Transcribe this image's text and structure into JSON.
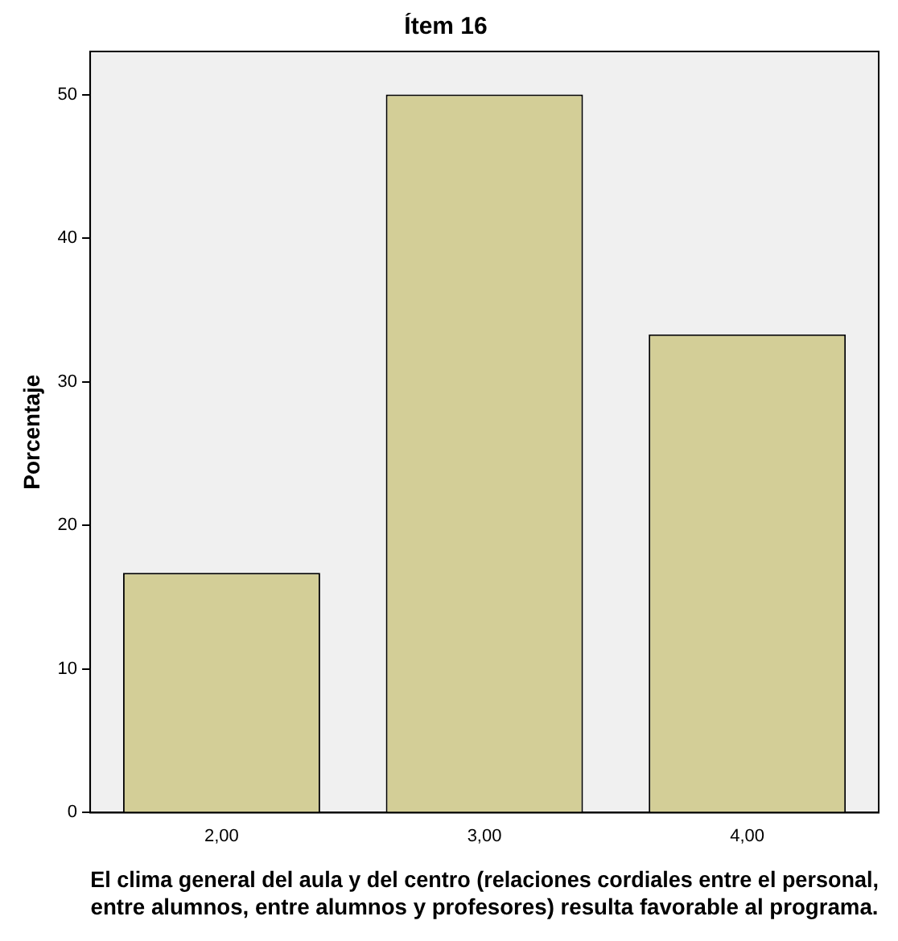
{
  "chart_data": {
    "type": "bar",
    "title": "Ítem 16",
    "xlabel": "El clima general del aula y del centro (relaciones cordiales entre el personal, entre alumnos, entre alumnos y profesores) resulta favorable al programa.",
    "ylabel": "Porcentaje",
    "categories": [
      "2,00",
      "3,00",
      "4,00"
    ],
    "values": [
      16.7,
      50,
      33.3
    ],
    "color": "#d3ce97",
    "ylim": [
      0,
      53
    ],
    "yticks": [
      0,
      10,
      20,
      30,
      40,
      50
    ],
    "grid": false,
    "legend": false
  }
}
